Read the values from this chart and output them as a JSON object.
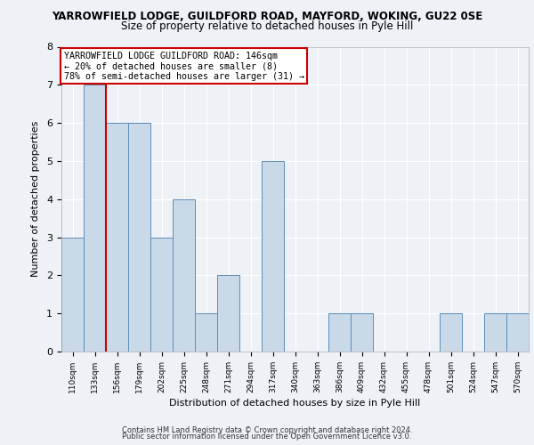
{
  "title1": "YARROWFIELD LODGE, GUILDFORD ROAD, MAYFORD, WOKING, GU22 0SE",
  "title2": "Size of property relative to detached houses in Pyle Hill",
  "xlabel": "Distribution of detached houses by size in Pyle Hill",
  "ylabel": "Number of detached properties",
  "categories": [
    "110sqm",
    "133sqm",
    "156sqm",
    "179sqm",
    "202sqm",
    "225sqm",
    "248sqm",
    "271sqm",
    "294sqm",
    "317sqm",
    "340sqm",
    "363sqm",
    "386sqm",
    "409sqm",
    "432sqm",
    "455sqm",
    "478sqm",
    "501sqm",
    "524sqm",
    "547sqm",
    "570sqm"
  ],
  "values": [
    3,
    7,
    6,
    6,
    3,
    4,
    1,
    2,
    0,
    5,
    0,
    0,
    1,
    1,
    0,
    0,
    0,
    1,
    0,
    1,
    1
  ],
  "bar_color": "#c9d9e8",
  "bar_edge_color": "#5b8db8",
  "reference_label": "YARROWFIELD LODGE GUILDFORD ROAD: 146sqm",
  "annotation_line1": "← 20% of detached houses are smaller (8)",
  "annotation_line2": "78% of semi-detached houses are larger (31) →",
  "ylim": [
    0,
    8
  ],
  "yticks": [
    0,
    1,
    2,
    3,
    4,
    5,
    6,
    7,
    8
  ],
  "footer1": "Contains HM Land Registry data © Crown copyright and database right 2024.",
  "footer2": "Public sector information licensed under the Open Government Licence v3.0.",
  "bg_color": "#eef2f7",
  "grid_color": "#ffffff",
  "ref_line_color": "#cc0000",
  "box_edge_color": "#cc0000",
  "ref_line_x": 1.5
}
